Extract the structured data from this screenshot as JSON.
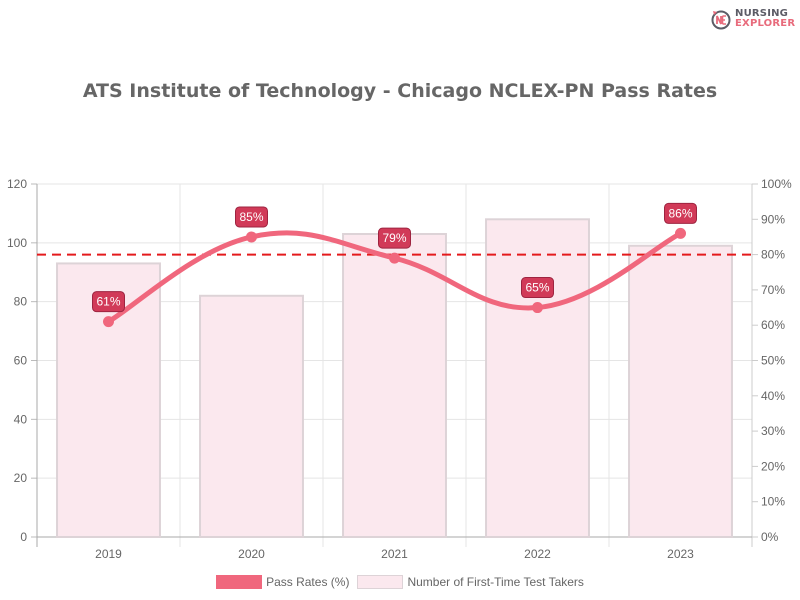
{
  "brand": {
    "line1": "NURSING",
    "line2": "EXPLORER",
    "logo_icon": "ne-monogram-icon"
  },
  "title": "ATS Institute of Technology - Chicago NCLEX-PN Pass Rates",
  "legend": [
    {
      "label": "Pass Rates (%)",
      "color": "#f0677d"
    },
    {
      "label": "Number of First-Time Test Takers",
      "color": "#fbe8ee"
    }
  ],
  "colors": {
    "line": "#f0677d",
    "bar_fill": "#fbe8ee",
    "bar_border": "#ddd3d7",
    "label_bg": "#d13a58",
    "label_border": "#9e2440",
    "benchmark": "#e41a1c",
    "grid": "#e5e5e5",
    "axis_text": "#666666"
  },
  "chart_data": {
    "type": "bar+line",
    "title": "ATS Institute of Technology - Chicago NCLEX-PN Pass Rates",
    "categories": [
      "2019",
      "2020",
      "2021",
      "2022",
      "2023"
    ],
    "series": [
      {
        "name": "Pass Rates (%)",
        "type": "line",
        "axis": "right",
        "values": [
          61,
          85,
          79,
          65,
          86
        ],
        "labels": [
          "61%",
          "85%",
          "79%",
          "65%",
          "86%"
        ]
      },
      {
        "name": "Number of First-Time Test Takers",
        "type": "bar",
        "axis": "left",
        "values": [
          93,
          82,
          103,
          108,
          99
        ]
      }
    ],
    "benchmark": {
      "axis": "right",
      "value": 80,
      "style": "dashed"
    },
    "y_left": {
      "ylim": [
        0,
        120
      ],
      "ticks": [
        "0",
        "20",
        "40",
        "60",
        "80",
        "100",
        "120"
      ]
    },
    "y_right": {
      "ylim": [
        0,
        100
      ],
      "ticks": [
        "0%",
        "10%",
        "20%",
        "30%",
        "40%",
        "50%",
        "60%",
        "70%",
        "80%",
        "90%",
        "100%"
      ]
    },
    "xlabel": "",
    "ylabel": "",
    "grid": true,
    "legend_position": "bottom"
  }
}
